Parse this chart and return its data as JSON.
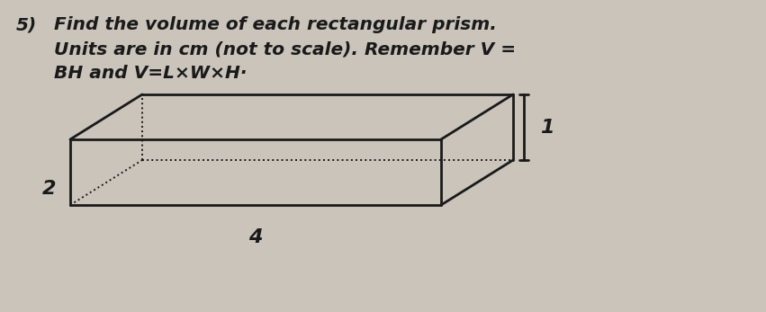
{
  "bg_color": "#cac4bb",
  "text_color": "#1a1a1a",
  "number": "5)",
  "line1": "Find the volume of each rectangular prism.",
  "line2": "Units are in cm (not to scale). Remember V =",
  "line3": "BH and V=L×W×H·",
  "dim_L": "4",
  "dim_W": "2",
  "dim_H": "1",
  "font_size_text": 14.5,
  "font_size_dim": 15
}
